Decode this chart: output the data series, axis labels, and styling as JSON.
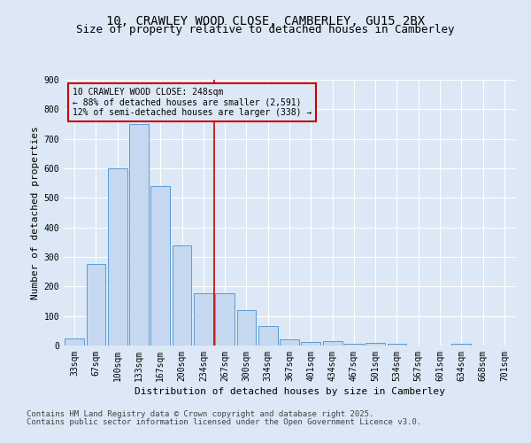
{
  "title": "10, CRAWLEY WOOD CLOSE, CAMBERLEY, GU15 2BX",
  "subtitle": "Size of property relative to detached houses in Camberley",
  "xlabel": "Distribution of detached houses by size in Camberley",
  "ylabel": "Number of detached properties",
  "categories": [
    "33sqm",
    "67sqm",
    "100sqm",
    "133sqm",
    "167sqm",
    "200sqm",
    "234sqm",
    "267sqm",
    "300sqm",
    "334sqm",
    "367sqm",
    "401sqm",
    "434sqm",
    "467sqm",
    "501sqm",
    "534sqm",
    "567sqm",
    "601sqm",
    "634sqm",
    "668sqm",
    "701sqm"
  ],
  "values": [
    25,
    275,
    600,
    750,
    540,
    340,
    178,
    178,
    120,
    65,
    22,
    12,
    15,
    5,
    8,
    5,
    0,
    0,
    5,
    0,
    0
  ],
  "bar_color": "#c5d8f0",
  "bar_edge_color": "#5b9bd5",
  "background_color": "#dce8f5",
  "plot_bg_color": "#dce8f5",
  "grid_color": "#ffffff",
  "vline_x_index": 6.5,
  "vline_color": "#cc0000",
  "annotation_text": "10 CRAWLEY WOOD CLOSE: 248sqm\n← 88% of detached houses are smaller (2,591)\n12% of semi-detached houses are larger (338) →",
  "annotation_box_color": "#cc0000",
  "ylim": [
    0,
    900
  ],
  "yticks": [
    0,
    100,
    200,
    300,
    400,
    500,
    600,
    700,
    800,
    900
  ],
  "footer_line1": "Contains HM Land Registry data © Crown copyright and database right 2025.",
  "footer_line2": "Contains public sector information licensed under the Open Government Licence v3.0.",
  "title_fontsize": 10,
  "subtitle_fontsize": 9,
  "axis_label_fontsize": 8,
  "tick_fontsize": 7,
  "annotation_fontsize": 7,
  "footer_fontsize": 6.5
}
